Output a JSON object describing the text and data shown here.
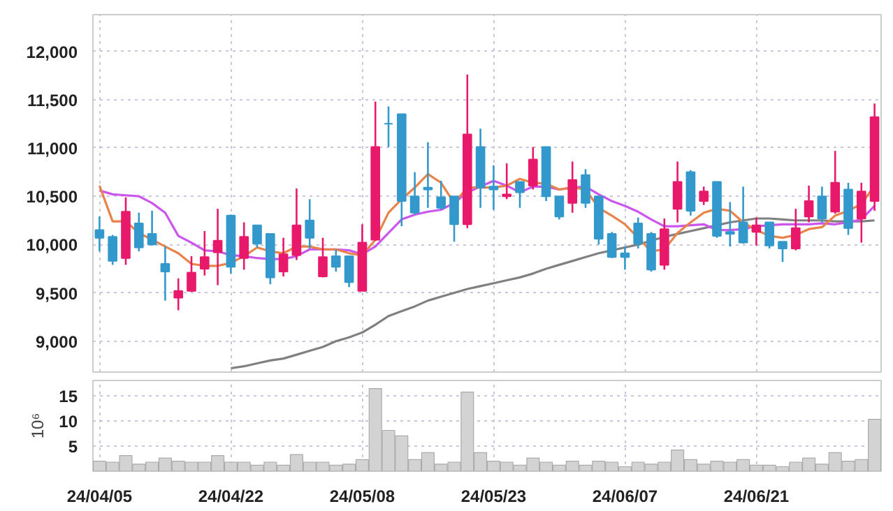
{
  "chart_data": [
    {
      "type": "candlestick",
      "categories": [
        null,
        null,
        null,
        null,
        null,
        null,
        null,
        null,
        null,
        null,
        null,
        null,
        null,
        null,
        null,
        null,
        null,
        null,
        null,
        null,
        null,
        null,
        null,
        null,
        null,
        null,
        null,
        null,
        null,
        null,
        null,
        null,
        null,
        null,
        null,
        null,
        null,
        null,
        null,
        null,
        null,
        null,
        null,
        null,
        null,
        null,
        null,
        null,
        null,
        null,
        null,
        null,
        null,
        null,
        null,
        null,
        null,
        null,
        null,
        null
      ],
      "tick_labels": "y",
      "ylim": [
        8680,
        12380
      ],
      "yticks": [
        {
          "value": 9000,
          "label": "9,000"
        },
        {
          "value": 9500,
          "label": "9,500"
        },
        {
          "value": 10000,
          "label": "10,000"
        },
        {
          "value": 10500,
          "label": "10,500"
        },
        {
          "value": 11000,
          "label": "11,000"
        },
        {
          "value": 11500,
          "label": "11,500"
        },
        {
          "value": 12000,
          "label": "12,000"
        }
      ],
      "grid": true,
      "ohlc": [
        [
          10150,
          10290,
          9930,
          10070
        ],
        [
          10080,
          10100,
          9790,
          9830
        ],
        [
          9860,
          10490,
          9790,
          10340
        ],
        [
          10220,
          10330,
          9930,
          9970
        ],
        [
          10110,
          10350,
          9990,
          10000
        ],
        [
          9800,
          9980,
          9420,
          9720
        ],
        [
          9450,
          9650,
          9320,
          9520
        ],
        [
          9520,
          9880,
          9510,
          9710
        ],
        [
          9750,
          10140,
          9680,
          9870
        ],
        [
          9920,
          10370,
          9580,
          10040
        ],
        [
          10300,
          10310,
          9700,
          9770
        ],
        [
          9860,
          10230,
          9740,
          10080
        ],
        [
          10200,
          10200,
          9970,
          10010
        ],
        [
          10110,
          10110,
          9590,
          9660
        ],
        [
          9720,
          10070,
          9670,
          9900
        ],
        [
          9890,
          10580,
          9840,
          10200
        ],
        [
          10250,
          10470,
          9960,
          10070
        ],
        [
          9670,
          10070,
          9660,
          9870
        ],
        [
          9880,
          9950,
          9720,
          9770
        ],
        [
          9880,
          9880,
          9560,
          9610
        ],
        [
          9520,
          10210,
          9520,
          10020
        ],
        [
          10050,
          11480,
          10040,
          11010
        ],
        [
          11250,
          11430,
          11010,
          11250
        ],
        [
          11350,
          11350,
          10190,
          10450
        ],
        [
          10500,
          10750,
          10310,
          10330
        ],
        [
          10590,
          11060,
          10380,
          10570
        ],
        [
          10490,
          10660,
          10360,
          10380
        ],
        [
          10500,
          10500,
          10030,
          10210
        ],
        [
          10210,
          11760,
          10170,
          11140
        ],
        [
          11010,
          11200,
          10380,
          10590
        ],
        [
          10600,
          10820,
          10360,
          10570
        ],
        [
          10500,
          10840,
          10470,
          10520
        ],
        [
          10650,
          10650,
          10380,
          10540
        ],
        [
          10610,
          11010,
          10570,
          10880
        ],
        [
          11010,
          11010,
          10450,
          10500
        ],
        [
          10500,
          10500,
          10260,
          10290
        ],
        [
          10430,
          10860,
          10330,
          10670
        ],
        [
          10720,
          10780,
          10380,
          10430
        ],
        [
          10500,
          10500,
          10000,
          10060
        ],
        [
          10110,
          10130,
          9860,
          9870
        ],
        [
          9910,
          9980,
          9740,
          9870
        ],
        [
          10220,
          10280,
          9960,
          10010
        ],
        [
          10110,
          10130,
          9720,
          9740
        ],
        [
          9790,
          10270,
          9740,
          10160
        ],
        [
          10370,
          10860,
          10230,
          10650
        ],
        [
          10750,
          10770,
          10300,
          10350
        ],
        [
          10450,
          10600,
          10410,
          10550
        ],
        [
          10650,
          10650,
          10070,
          10090
        ],
        [
          10130,
          10440,
          9980,
          10110
        ],
        [
          10230,
          10600,
          10010,
          10020
        ],
        [
          10130,
          10280,
          9990,
          10200
        ],
        [
          10230,
          10230,
          9960,
          9990
        ],
        [
          10030,
          10030,
          9820,
          9960
        ],
        [
          9960,
          10370,
          9940,
          10170
        ],
        [
          10290,
          10610,
          10230,
          10450
        ],
        [
          10500,
          10600,
          10230,
          10270
        ],
        [
          10340,
          10970,
          10320,
          10640
        ],
        [
          10570,
          10640,
          10100,
          10170
        ],
        [
          10270,
          10640,
          10020,
          10550
        ],
        [
          10450,
          11460,
          10350,
          11320
        ]
      ],
      "colors": [
        "#3399cc",
        "#3399cc",
        "#e8196b",
        "#3399cc",
        "#3399cc",
        "#3399cc",
        "#e8196b",
        "#e8196b",
        "#e8196b",
        "#e8196b",
        "#3399cc",
        "#e8196b",
        "#3399cc",
        "#3399cc",
        "#e8196b",
        "#e8196b",
        "#3399cc",
        "#e8196b",
        "#3399cc",
        "#3399cc",
        "#e8196b",
        "#e8196b",
        "#3399cc",
        "#3399cc",
        "#3399cc",
        "#3399cc",
        "#3399cc",
        "#3399cc",
        "#e8196b",
        "#3399cc",
        "#3399cc",
        "#e8196b",
        "#3399cc",
        "#e8196b",
        "#3399cc",
        "#3399cc",
        "#e8196b",
        "#3399cc",
        "#3399cc",
        "#3399cc",
        "#3399cc",
        "#3399cc",
        "#3399cc",
        "#e8196b",
        "#e8196b",
        "#3399cc",
        "#e8196b",
        "#3399cc",
        "#3399cc",
        "#3399cc",
        "#e8196b",
        "#3399cc",
        "#3399cc",
        "#e8196b",
        "#e8196b",
        "#3399cc",
        "#e8196b",
        "#3399cc",
        "#e8196b",
        "#e8196b"
      ],
      "series": [
        {
          "type": "line",
          "color": "#808080",
          "values": [
            null,
            null,
            null,
            null,
            null,
            null,
            null,
            null,
            null,
            null,
            8720,
            8740,
            8770,
            8800,
            8820,
            8860,
            8900,
            8940,
            9000,
            9040,
            9090,
            9170,
            9260,
            9310,
            9360,
            9420,
            9460,
            9500,
            9540,
            9570,
            9600,
            9630,
            9660,
            9700,
            9750,
            9790,
            9830,
            9870,
            9910,
            9940,
            9970,
            10000,
            10040,
            10080,
            10110,
            10140,
            10170,
            10200,
            10230,
            10250,
            10270,
            10270,
            10260,
            10250,
            10250,
            10250,
            10240,
            10240,
            10240,
            10250
          ]
        },
        {
          "type": "line",
          "color": "#cc55ee",
          "values": [
            10560,
            10520,
            10510,
            10500,
            10430,
            10330,
            10090,
            10020,
            9940,
            9930,
            9890,
            9880,
            9860,
            9850,
            9850,
            9880,
            9950,
            9950,
            9950,
            9940,
            9900,
            9980,
            10120,
            10260,
            10310,
            10340,
            10360,
            10430,
            10540,
            10600,
            10660,
            10610,
            10540,
            10600,
            10600,
            10570,
            10590,
            10600,
            10520,
            10450,
            10400,
            10340,
            10260,
            10190,
            10190,
            10200,
            10210,
            10150,
            10150,
            10160,
            10190,
            10200,
            10210,
            10210,
            10210,
            10220,
            10210,
            10230,
            10260,
            10400
          ]
        },
        {
          "type": "line",
          "color": "#e8834a",
          "values": [
            10610,
            10240,
            10240,
            10120,
            10050,
            9980,
            9910,
            9800,
            9780,
            9780,
            9810,
            9880,
            9970,
            9930,
            9910,
            9980,
            9980,
            9950,
            9950,
            9910,
            9890,
            10050,
            10330,
            10470,
            10590,
            10730,
            10640,
            10430,
            10590,
            10590,
            10590,
            10610,
            10680,
            10640,
            10630,
            10570,
            10590,
            10570,
            10380,
            10300,
            10210,
            10070,
            9930,
            9950,
            10120,
            10230,
            10330,
            10370,
            10350,
            10230,
            10150,
            10090,
            10070,
            10100,
            10160,
            10180,
            10300,
            10350,
            10420,
            10610
          ]
        }
      ]
    },
    {
      "type": "bar",
      "categories": [
        "24/04/05",
        null,
        null,
        null,
        null,
        null,
        null,
        null,
        null,
        null,
        "24/04/22",
        null,
        null,
        null,
        null,
        null,
        null,
        null,
        null,
        null,
        "24/05/08",
        null,
        null,
        null,
        null,
        null,
        null,
        null,
        null,
        null,
        "24/05/23",
        null,
        null,
        null,
        null,
        null,
        null,
        null,
        null,
        null,
        "24/06/07",
        null,
        null,
        null,
        null,
        null,
        null,
        null,
        null,
        null,
        "24/06/21",
        null,
        null,
        null,
        null,
        null,
        null,
        null,
        null,
        null
      ],
      "ylabel": "10⁶",
      "ylim": [
        0,
        18
      ],
      "yticks": [
        5,
        10,
        15
      ],
      "grid": true,
      "color": "#d3d3d3",
      "values": [
        2.0,
        1.8,
        3.1,
        1.4,
        1.8,
        2.6,
        2.0,
        1.8,
        1.8,
        3.1,
        1.8,
        1.8,
        1.2,
        1.8,
        1.2,
        3.3,
        1.8,
        1.8,
        1.2,
        1.4,
        2.3,
        16.4,
        8.1,
        7.0,
        2.3,
        3.7,
        1.4,
        1.8,
        15.7,
        3.7,
        2.0,
        1.8,
        1.2,
        2.6,
        1.8,
        1.2,
        2.0,
        1.2,
        2.0,
        1.8,
        0.9,
        1.8,
        1.4,
        1.8,
        4.2,
        2.3,
        1.4,
        2.0,
        1.8,
        2.3,
        1.2,
        1.2,
        0.9,
        1.8,
        2.6,
        1.4,
        3.7,
        2.0,
        2.3,
        10.3
      ]
    }
  ]
}
